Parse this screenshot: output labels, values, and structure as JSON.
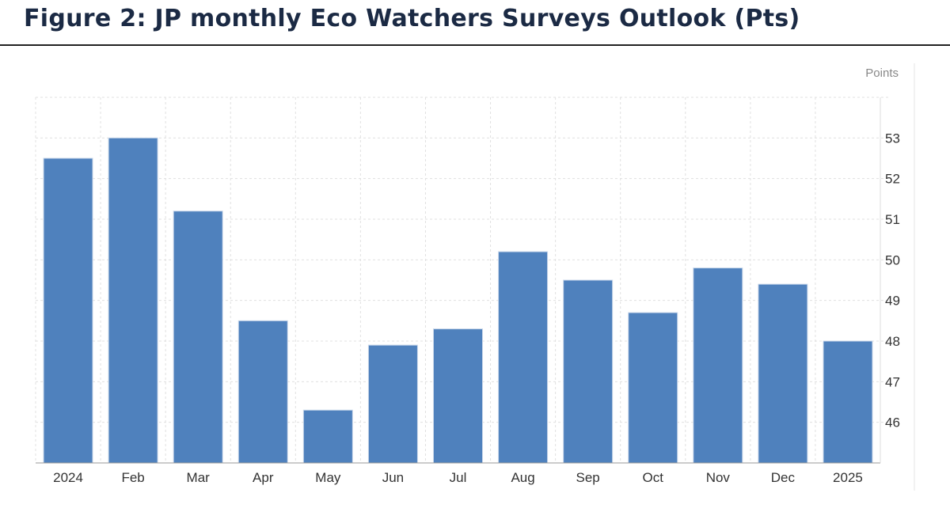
{
  "title": "Figure 2: JP monthly Eco Watchers Surveys Outlook (Pts)",
  "chart_data": {
    "type": "bar",
    "title": "",
    "ylabel": "Points",
    "xlabel": "",
    "categories": [
      "2024",
      "Feb",
      "Mar",
      "Apr",
      "May",
      "Jun",
      "Jul",
      "Aug",
      "Sep",
      "Oct",
      "Nov",
      "Dec",
      "2025"
    ],
    "values": [
      52.5,
      53.0,
      51.2,
      48.5,
      46.3,
      47.9,
      48.3,
      50.2,
      49.5,
      48.7,
      49.8,
      49.4,
      48.0
    ],
    "ylim": [
      45,
      54
    ],
    "yticks": [
      46,
      47,
      48,
      49,
      50,
      51,
      52,
      53
    ],
    "yaxis_side": "right",
    "grid": true,
    "bar_color": "#4f81bd"
  }
}
